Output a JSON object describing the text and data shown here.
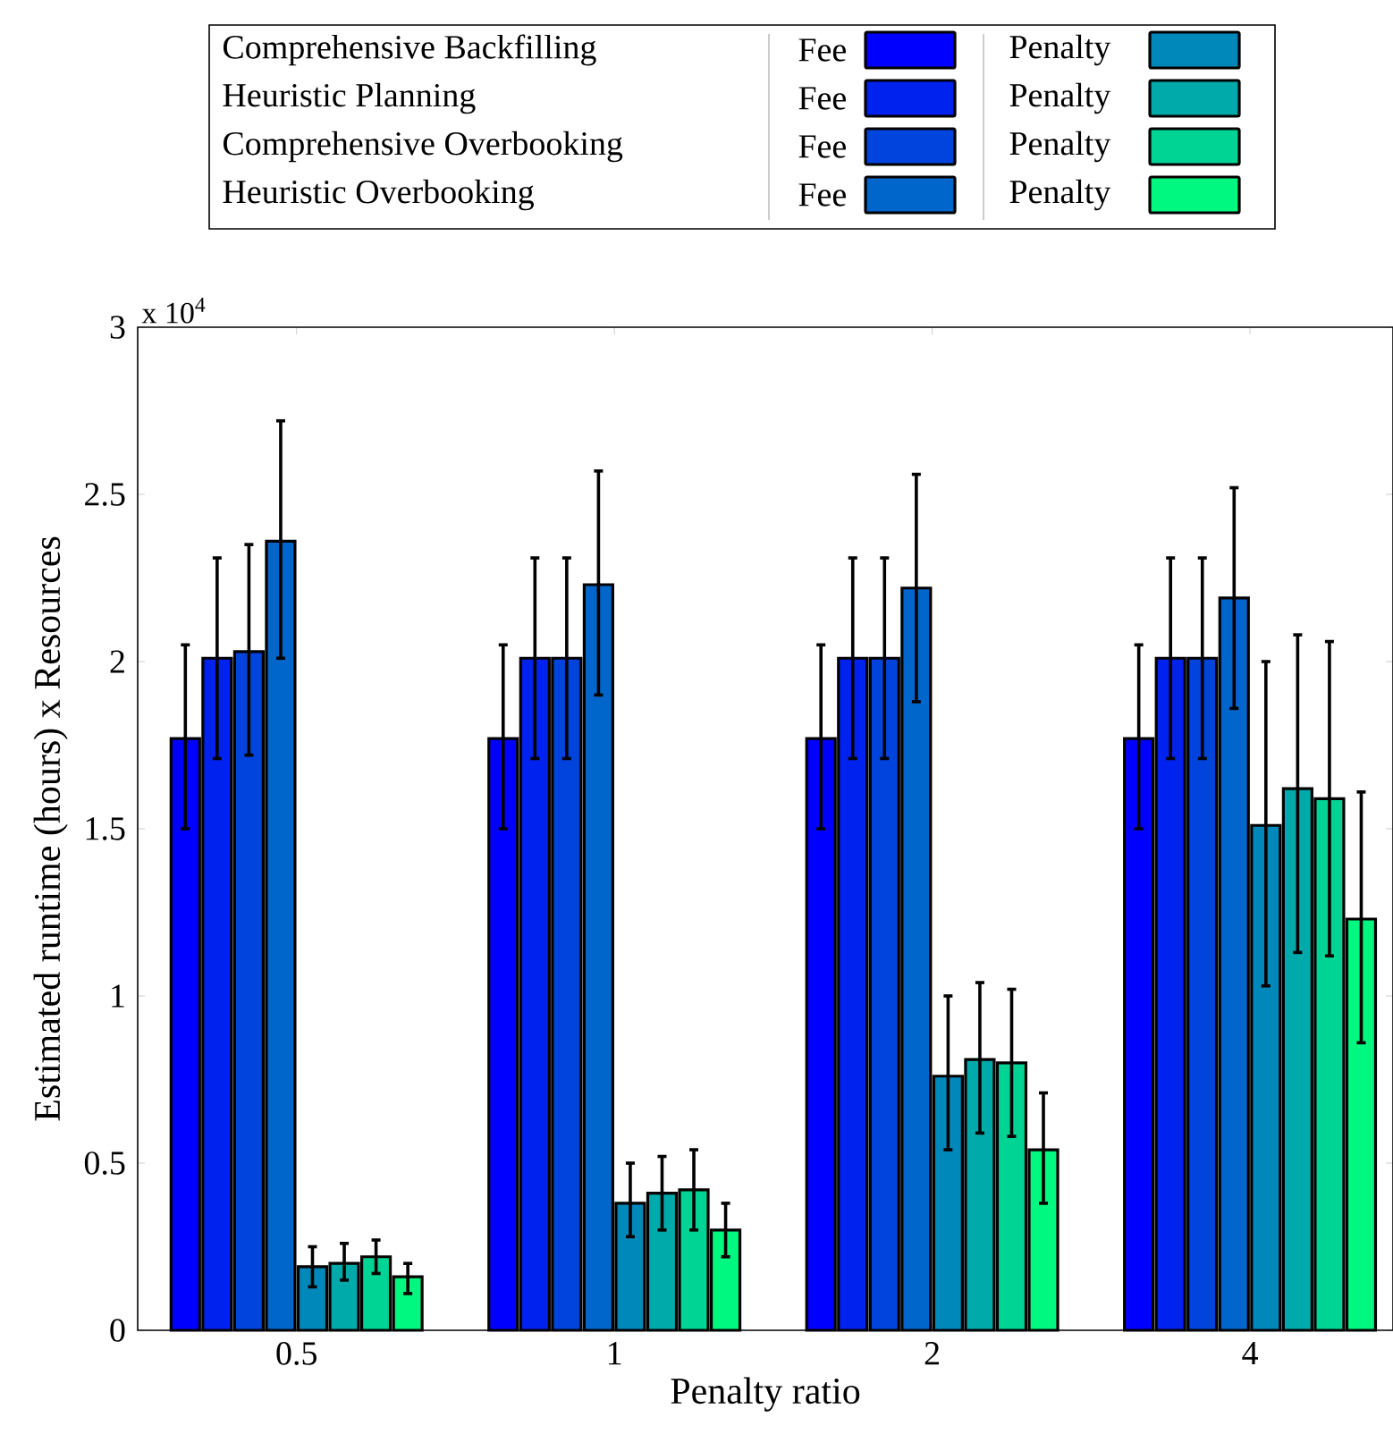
{
  "chart_data": {
    "type": "bar",
    "xlabel": "Penalty ratio",
    "ylabel": "Estimated runtime (hours) x Resources",
    "categories": [
      "0.5",
      "1",
      "2",
      "4"
    ],
    "ylim": [
      0,
      3
    ],
    "yticks": [
      0,
      0.5,
      1,
      1.5,
      2,
      2.5,
      3
    ],
    "legend": "top",
    "grid": false,
    "annotations": [
      "x 10$^{4}$",
      "Comprehensive Backfilling",
      "Heuristic Planning",
      "Comprehensive Overbooking",
      "Heuristic Overbooking"
    ],
    "series": [
      {
        "name": "Fee",
        "color": "#0000ff",
        "values": [
          1.77,
          1.77,
          1.77,
          1.77
        ],
        "errors": [
          [
            1.5,
            2.05
          ],
          [
            1.5,
            2.05
          ],
          [
            1.5,
            2.05
          ],
          [
            1.5,
            2.05
          ]
        ]
      },
      {
        "name": "Fee",
        "color": "#0022ee",
        "values": [
          2.01,
          2.01,
          2.01,
          2.01
        ],
        "errors": [
          [
            1.71,
            2.31
          ],
          [
            1.71,
            2.31
          ],
          [
            1.71,
            2.31
          ],
          [
            1.71,
            2.31
          ]
        ]
      },
      {
        "name": "Fee",
        "color": "#0044dd",
        "values": [
          2.03,
          2.01,
          2.01,
          2.01
        ],
        "errors": [
          [
            1.72,
            2.35
          ],
          [
            1.71,
            2.31
          ],
          [
            1.71,
            2.31
          ],
          [
            1.71,
            2.31
          ]
        ]
      },
      {
        "name": "Fee",
        "color": "#0066cc",
        "values": [
          2.36,
          2.23,
          2.22,
          2.19
        ],
        "errors": [
          [
            2.01,
            2.72
          ],
          [
            1.9,
            2.57
          ],
          [
            1.88,
            2.56
          ],
          [
            1.86,
            2.52
          ]
        ]
      },
      {
        "name": "Penalty",
        "color": "#0088bb",
        "values": [
          0.19,
          0.38,
          0.76,
          1.51
        ],
        "errors": [
          [
            0.13,
            0.25
          ],
          [
            0.28,
            0.5
          ],
          [
            0.54,
            1.0
          ],
          [
            1.03,
            2.0
          ]
        ]
      },
      {
        "name": "Penalty",
        "color": "#00aaaa",
        "values": [
          0.2,
          0.41,
          0.81,
          1.62
        ],
        "errors": [
          [
            0.15,
            0.26
          ],
          [
            0.3,
            0.52
          ],
          [
            0.59,
            1.04
          ],
          [
            1.13,
            2.08
          ]
        ]
      },
      {
        "name": "Penalty",
        "color": "#00d495",
        "values": [
          0.22,
          0.42,
          0.8,
          1.59
        ],
        "errors": [
          [
            0.17,
            0.27
          ],
          [
            0.3,
            0.54
          ],
          [
            0.58,
            1.02
          ],
          [
            1.12,
            2.06
          ]
        ]
      },
      {
        "name": "Penalty",
        "color": "#00f880",
        "values": [
          0.16,
          0.3,
          0.54,
          1.23
        ],
        "errors": [
          [
            0.11,
            0.2
          ],
          [
            0.22,
            0.38
          ],
          [
            0.38,
            0.71
          ],
          [
            0.86,
            1.61
          ]
        ]
      }
    ]
  }
}
